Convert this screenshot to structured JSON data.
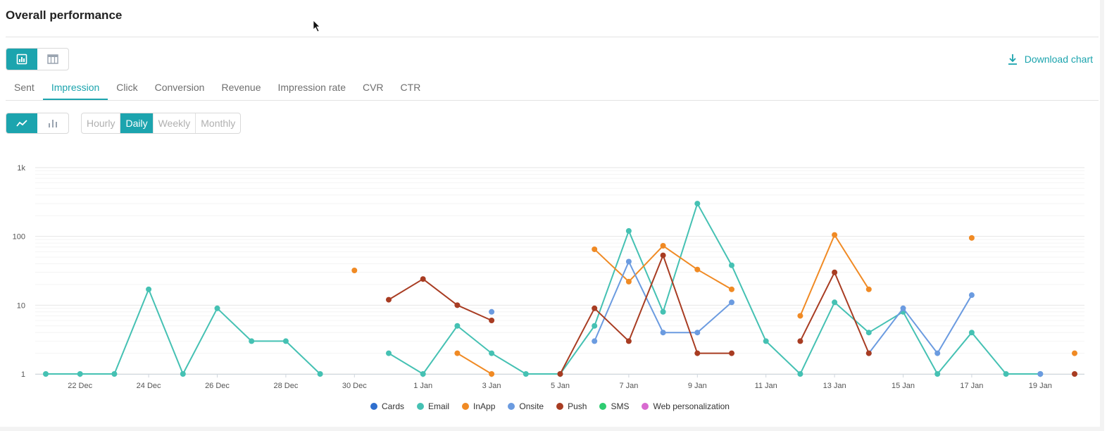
{
  "header": {
    "title": "Overall performance",
    "download_label": "Download chart"
  },
  "metric_tabs": [
    {
      "label": "Sent",
      "active": false
    },
    {
      "label": "Impression",
      "active": true
    },
    {
      "label": "Click",
      "active": false
    },
    {
      "label": "Conversion",
      "active": false
    },
    {
      "label": "Revenue",
      "active": false
    },
    {
      "label": "Impression rate",
      "active": false
    },
    {
      "label": "CVR",
      "active": false
    },
    {
      "label": "CTR",
      "active": false
    }
  ],
  "granularity": [
    {
      "label": "Hourly",
      "active": false
    },
    {
      "label": "Daily",
      "active": true
    },
    {
      "label": "Weekly",
      "active": false
    },
    {
      "label": "Monthly",
      "active": false
    }
  ],
  "icons": {
    "chart_view": "bar-chart-icon",
    "table_view": "table-icon",
    "line_chart": "line-chart-icon",
    "bar_chart": "column-chart-icon",
    "download": "download-icon"
  },
  "colors": {
    "accent": "#1ca4ae"
  },
  "chart_data": {
    "type": "line",
    "y_scale": "log",
    "ylim": [
      1,
      1000
    ],
    "y_ticks": [
      {
        "v": 1,
        "label": "1"
      },
      {
        "v": 10,
        "label": "10"
      },
      {
        "v": 100,
        "label": "100"
      },
      {
        "v": 1000,
        "label": "1k"
      }
    ],
    "x": [
      "21 Dec",
      "22 Dec",
      "23 Dec",
      "24 Dec",
      "25 Dec",
      "26 Dec",
      "27 Dec",
      "28 Dec",
      "29 Dec",
      "30 Dec",
      "31 Dec",
      "1 Jan",
      "2 Jan",
      "3 Jan",
      "4 Jan",
      "5 Jan",
      "6 Jan",
      "7 Jan",
      "8 Jan",
      "9 Jan",
      "10 Jan",
      "11 Jan",
      "12 Jan",
      "13 Jan",
      "14 Jan",
      "15 Jan",
      "16 Jan",
      "17 Jan",
      "18 Jan",
      "19 Jan",
      "20 Jan"
    ],
    "x_tick_labels": [
      "22 Dec",
      "24 Dec",
      "26 Dec",
      "28 Dec",
      "30 Dec",
      "1 Jan",
      "3 Jan",
      "5 Jan",
      "7 Jan",
      "9 Jan",
      "11 Jan",
      "13 Jan",
      "15 Jan",
      "17 Jan",
      "19 Jan"
    ],
    "series": [
      {
        "name": "Cards",
        "color": "#2f6fce",
        "values": [
          null,
          null,
          null,
          null,
          null,
          null,
          null,
          null,
          null,
          null,
          null,
          null,
          null,
          null,
          null,
          null,
          null,
          null,
          null,
          null,
          null,
          null,
          null,
          null,
          null,
          null,
          null,
          null,
          null,
          null,
          null
        ]
      },
      {
        "name": "Email",
        "color": "#45c1b3",
        "values": [
          1,
          1,
          1,
          17,
          1,
          9,
          3,
          3,
          1,
          null,
          2,
          1,
          5,
          2,
          1,
          1,
          5,
          120,
          8,
          300,
          38,
          3,
          1,
          11,
          4,
          8,
          1,
          4,
          1,
          1,
          null
        ]
      },
      {
        "name": "InApp",
        "color": "#f08a24",
        "values": [
          null,
          null,
          null,
          null,
          null,
          null,
          null,
          null,
          null,
          32,
          null,
          null,
          2,
          1,
          null,
          null,
          65,
          22,
          73,
          33,
          17,
          null,
          7,
          105,
          17,
          null,
          null,
          95,
          null,
          null,
          2
        ]
      },
      {
        "name": "Onsite",
        "color": "#6b9be0",
        "values": [
          null,
          null,
          null,
          null,
          null,
          null,
          null,
          null,
          null,
          null,
          null,
          null,
          null,
          8,
          null,
          null,
          3,
          43,
          4,
          4,
          11,
          null,
          null,
          null,
          2,
          9,
          2,
          14,
          null,
          1,
          null
        ]
      },
      {
        "name": "Push",
        "color": "#a83c22",
        "values": [
          null,
          null,
          null,
          null,
          null,
          null,
          null,
          null,
          null,
          null,
          12,
          24,
          10,
          6,
          null,
          1,
          9,
          3,
          53,
          2,
          2,
          null,
          3,
          30,
          2,
          null,
          null,
          null,
          null,
          null,
          1
        ]
      },
      {
        "name": "SMS",
        "color": "#2ecc71",
        "values": [
          null,
          null,
          null,
          null,
          null,
          null,
          null,
          null,
          null,
          null,
          null,
          null,
          null,
          null,
          null,
          null,
          null,
          null,
          null,
          null,
          null,
          null,
          null,
          null,
          null,
          null,
          null,
          null,
          null,
          null,
          null
        ]
      },
      {
        "name": "Web personalization",
        "color": "#d86ad0",
        "values": [
          null,
          null,
          null,
          null,
          null,
          null,
          null,
          null,
          null,
          null,
          null,
          null,
          null,
          null,
          null,
          null,
          null,
          null,
          null,
          null,
          null,
          null,
          null,
          null,
          null,
          null,
          null,
          null,
          null,
          null,
          null
        ]
      }
    ],
    "grid": true,
    "legend_position": "bottom-center"
  }
}
